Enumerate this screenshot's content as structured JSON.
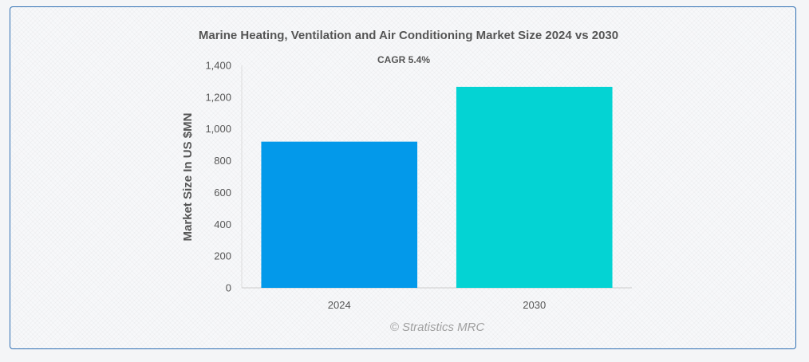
{
  "chart_data": {
    "type": "bar",
    "title": "Marine Heating, Ventilation and Air Conditioning Market Size 2024 vs 2030",
    "subtitle": "CAGR 5.4%",
    "xlabel": "",
    "ylabel": "Market Size In US $MN",
    "categories": [
      "2024",
      "2030"
    ],
    "values": [
      920,
      1265
    ],
    "ylim": [
      0,
      1400
    ],
    "ytick_values": [
      0,
      200,
      400,
      600,
      800,
      1000,
      1200,
      1400
    ],
    "ytick_labels": [
      "0",
      "200",
      "400",
      "600",
      "800",
      "1,000",
      "1,200",
      "1,400"
    ],
    "colors": [
      "#0399ea",
      "#04d3d3"
    ],
    "grid": false,
    "legend": "none"
  },
  "watermark": "© Stratistics MRC"
}
